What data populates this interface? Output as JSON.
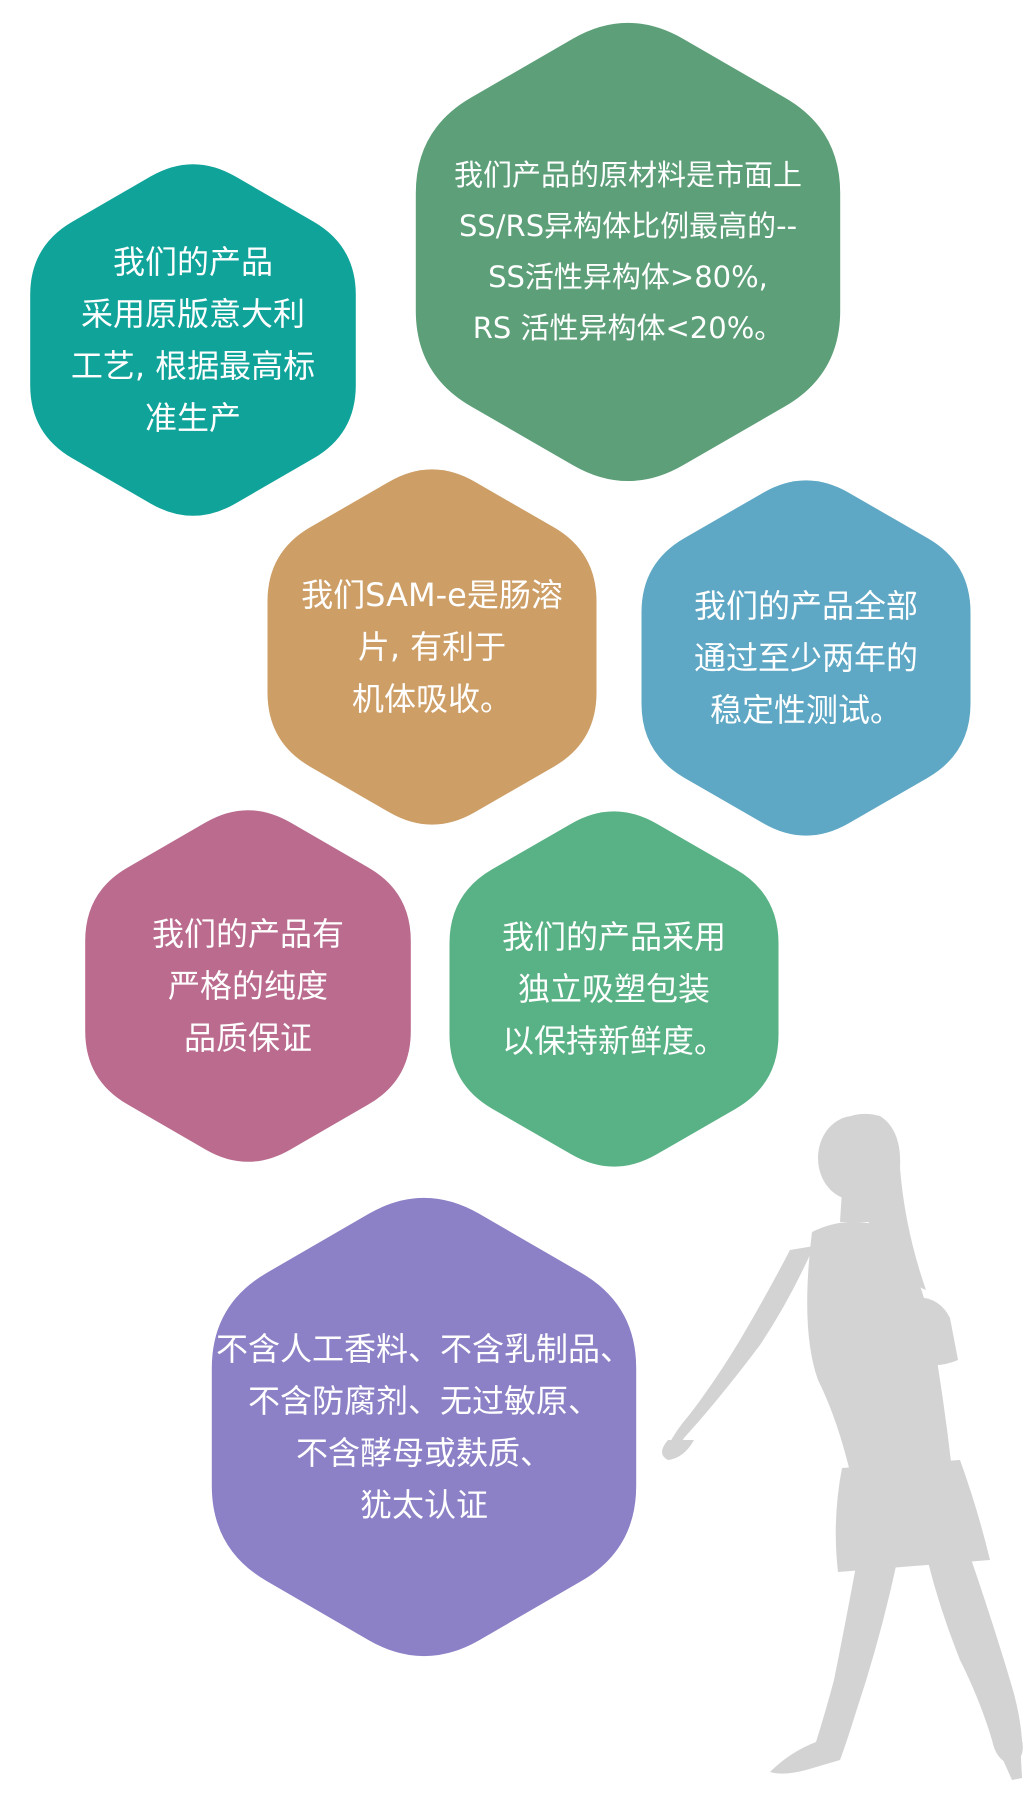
{
  "colors": {
    "teal": "#0fa39a",
    "sage": "#5c9f78",
    "tan": "#cd9e66",
    "sky": "#5ea8c5",
    "mauve": "#ba6b8e",
    "mint": "#58b285",
    "lavender": "#8c80c6",
    "silhouette": "#d3d3d3"
  },
  "hexagons": [
    {
      "id": "hex-teal",
      "color": "teal",
      "lines": [
        "我们的产品",
        "采用原版意大利",
        "工艺, 根据最高标",
        "准生产"
      ]
    },
    {
      "id": "hex-sage",
      "color": "sage",
      "lines": [
        "我们产品的原材料是市面上",
        "SS/RS异构体比例最高的--",
        "SS活性异构体>80%,",
        "RS 活性异构体<20%。"
      ]
    },
    {
      "id": "hex-tan",
      "color": "tan",
      "lines": [
        "我们SAM-e是肠溶",
        "片, 有利于",
        "机体吸收。"
      ]
    },
    {
      "id": "hex-sky",
      "color": "sky",
      "lines": [
        "我们的产品全部",
        "通过至少两年的",
        "稳定性测试。"
      ]
    },
    {
      "id": "hex-mauve",
      "color": "mauve",
      "lines": [
        "我们的产品有",
        "严格的纯度",
        "品质保证"
      ]
    },
    {
      "id": "hex-mint",
      "color": "mint",
      "lines": [
        "我们的产品采用",
        "独立吸塑包装",
        "以保持新鲜度。"
      ]
    },
    {
      "id": "hex-lavender",
      "color": "lavender",
      "lines": [
        "不含人工香料、不含乳制品、",
        "不含防腐剂、无过敏原、",
        "不含酵母或麸质、",
        "犹太认证"
      ]
    }
  ],
  "figure": {
    "icon": "walking-woman-silhouette"
  }
}
